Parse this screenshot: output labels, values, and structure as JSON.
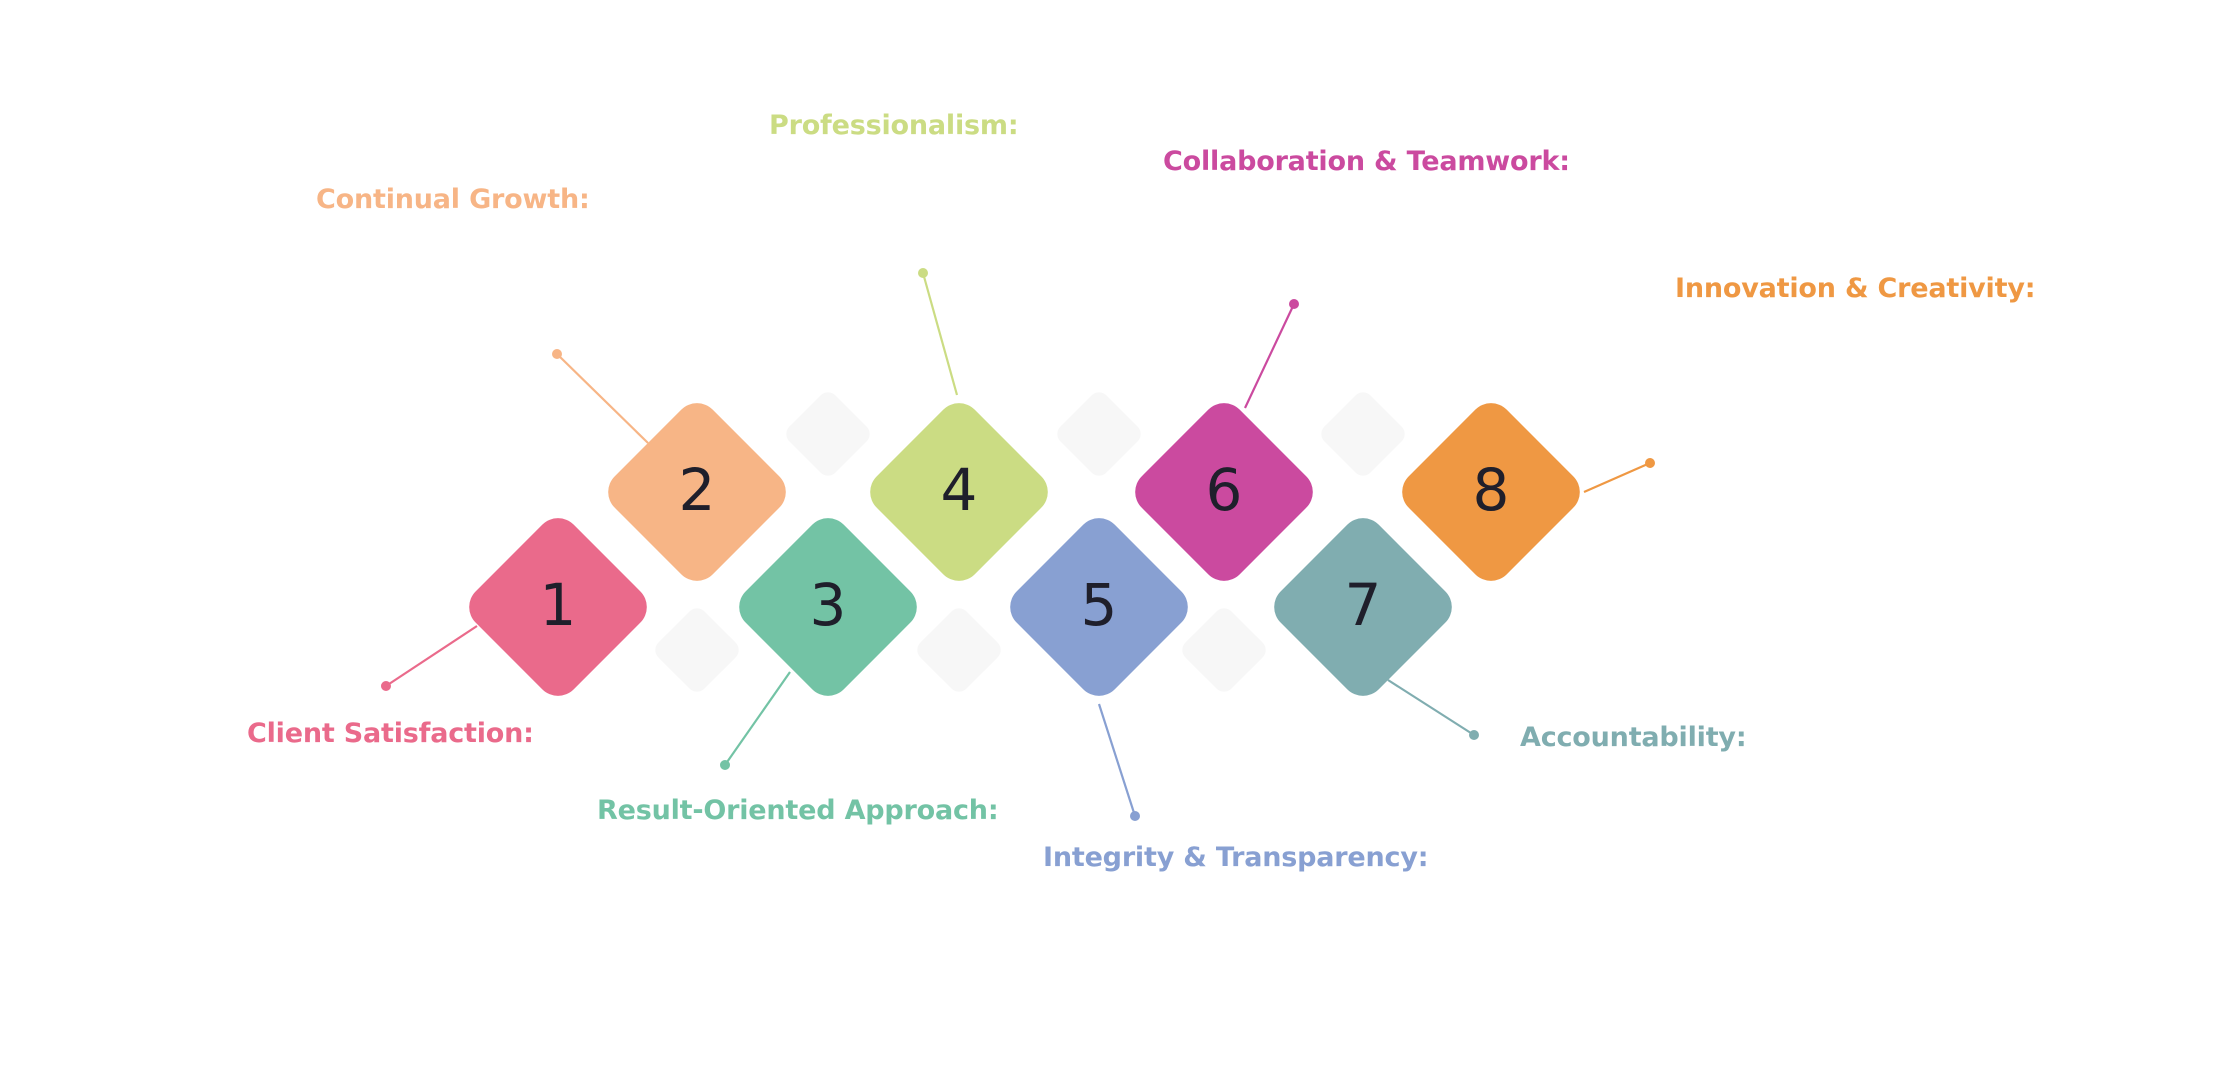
{
  "colors": {
    "background": "#ffffff",
    "placeholder": "#f7f7f7",
    "number_text": "#1f1f2b"
  },
  "steps": [
    {
      "number": "1",
      "label": "Client Satisfaction:",
      "color": "#ea6a8b"
    },
    {
      "number": "2",
      "label": "Continual Growth:",
      "color": "#f7b586"
    },
    {
      "number": "3",
      "label": "Result-Oriented Approach:",
      "color": "#73c3a5"
    },
    {
      "number": "4",
      "label": "Professionalism:",
      "color": "#cbdc83"
    },
    {
      "number": "5",
      "label": "Integrity & Transparency:",
      "color": "#88a0d2"
    },
    {
      "number": "6",
      "label": "Collaboration & Teamwork:",
      "color": "#cb4a9f"
    },
    {
      "number": "7",
      "label": "Accountability:",
      "color": "#80adb0"
    },
    {
      "number": "8",
      "label": "Innovation & Creativity:",
      "color": "#ef9843"
    }
  ]
}
